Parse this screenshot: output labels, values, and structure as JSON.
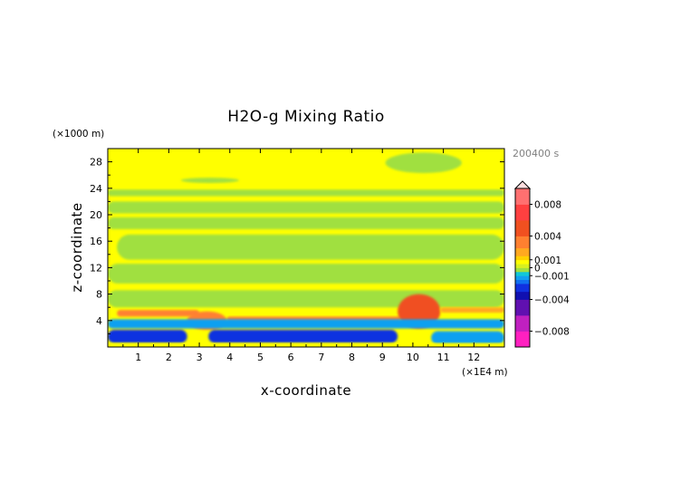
{
  "chart_data": {
    "type": "heatmap",
    "title": "H2O-g Mixing Ratio",
    "xlabel": "x-coordinate",
    "ylabel": "z-coordinate",
    "x_unit": "(×1E4 m)",
    "y_unit": "(×1000 m)",
    "time_label": "200400 s",
    "xlim": [
      0,
      13
    ],
    "ylim": [
      0,
      30
    ],
    "x_ticks": [
      "1",
      "2",
      "3",
      "4",
      "5",
      "6",
      "7",
      "8",
      "9",
      "10",
      "11",
      "12"
    ],
    "y_ticks": [
      "4",
      "8",
      "12",
      "16",
      "20",
      "24",
      "28"
    ],
    "colorbar": {
      "range": [
        -0.01,
        0.01
      ],
      "labels": [
        "0.008",
        "0.004",
        "0.001",
        "0",
        "−0.001",
        "−0.004",
        "−0.008"
      ],
      "label_values": [
        0.008,
        0.004,
        0.001,
        0,
        -0.001,
        -0.004,
        -0.008
      ]
    },
    "field_regions": [
      {
        "name": "background",
        "value": 0.0005,
        "x": [
          0,
          13
        ],
        "z": [
          0,
          30
        ]
      },
      {
        "name": "upper-band-1",
        "value": -0.0003,
        "x": [
          0,
          13
        ],
        "z": [
          22.8,
          23.8
        ]
      },
      {
        "name": "upper-band-2",
        "value": -0.0003,
        "x": [
          0,
          13
        ],
        "z": [
          20.2,
          22.0
        ]
      },
      {
        "name": "upper-band-3",
        "value": -0.0003,
        "x": [
          0,
          13
        ],
        "z": [
          17.8,
          19.6
        ]
      },
      {
        "name": "mid-band-1",
        "value": -0.0003,
        "x": [
          0.3,
          13
        ],
        "z": [
          13.2,
          17.0
        ]
      },
      {
        "name": "mid-band-2",
        "value": -0.0003,
        "x": [
          0,
          13
        ],
        "z": [
          9.6,
          12.6
        ]
      },
      {
        "name": "low-band",
        "value": -0.0003,
        "x": [
          0,
          13
        ],
        "z": [
          6.0,
          8.6
        ]
      },
      {
        "name": "top-blob",
        "value": -0.0003,
        "x": [
          9.1,
          11.6
        ],
        "z": [
          26.3,
          29.4
        ]
      },
      {
        "name": "small-blob",
        "value": -0.0003,
        "x": [
          2.4,
          4.3
        ],
        "z": [
          24.8,
          25.6
        ]
      },
      {
        "name": "moist-layer-left",
        "value": 0.003,
        "x": [
          0.3,
          3.0
        ],
        "z": [
          4.6,
          5.6
        ]
      },
      {
        "name": "moist-plume-3",
        "value": 0.003,
        "x": [
          2.6,
          3.9
        ],
        "z": [
          2.6,
          5.4
        ]
      },
      {
        "name": "moist-streak",
        "value": 0.0025,
        "x": [
          3.9,
          9.6
        ],
        "z": [
          3.8,
          4.6
        ]
      },
      {
        "name": "moist-plume-10",
        "value": 0.004,
        "x": [
          9.5,
          10.9
        ],
        "z": [
          2.8,
          8.0
        ]
      },
      {
        "name": "moist-layer-right",
        "value": 0.0015,
        "x": [
          10.9,
          13
        ],
        "z": [
          5.2,
          6.0
        ]
      },
      {
        "name": "dry-layer",
        "value": -0.0012,
        "x": [
          0,
          13
        ],
        "z": [
          2.8,
          4.2
        ]
      },
      {
        "name": "dry-surface-left",
        "value": -0.003,
        "x": [
          0,
          2.6
        ],
        "z": [
          0.6,
          2.6
        ]
      },
      {
        "name": "dry-surface-mid",
        "value": -0.003,
        "x": [
          3.3,
          9.5
        ],
        "z": [
          0.6,
          2.6
        ]
      },
      {
        "name": "dry-surface-right",
        "value": -0.0015,
        "x": [
          10.6,
          13
        ],
        "z": [
          0.4,
          2.4
        ]
      },
      {
        "name": "surface-moist-strip",
        "value": 0.0008,
        "x": [
          0,
          13
        ],
        "z": [
          0,
          0.6
        ]
      }
    ]
  }
}
